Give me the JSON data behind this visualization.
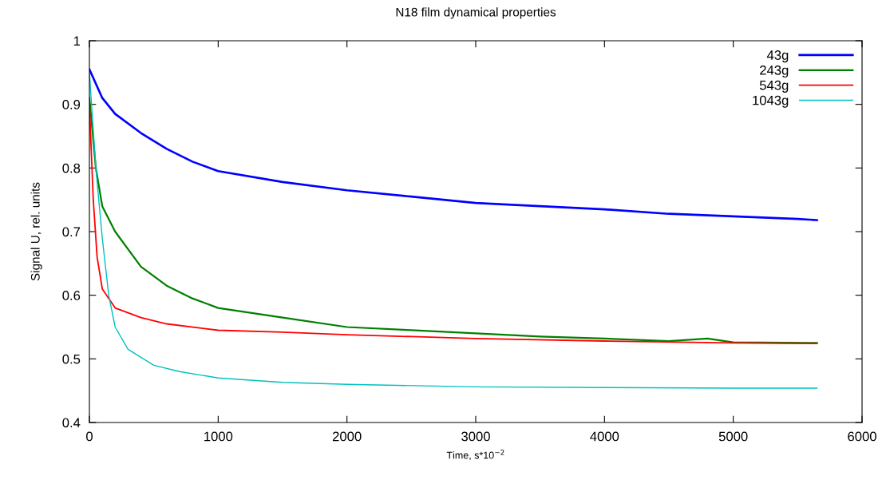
{
  "chart_data": {
    "type": "line",
    "title": "N18 film dynamical properties",
    "xlabel": "Time, s*10$^{−2}$",
    "ylabel": "Signal U, rel. units",
    "xlim": [
      0,
      6000
    ],
    "xticks": [
      0,
      1000,
      2000,
      3000,
      4000,
      5000,
      6000
    ],
    "ylim": [
      0.4,
      1
    ],
    "yticks": [
      0.4,
      0.5,
      0.6,
      0.7,
      0.8,
      0.9,
      1
    ],
    "legend": "top right",
    "grid": false,
    "marker": "none",
    "line_style": "solid",
    "series": [
      {
        "name": "43g",
        "color": "#0000ff",
        "x": [
          0,
          100,
          200,
          400,
          600,
          800,
          1000,
          1500,
          2000,
          2500,
          3000,
          3500,
          4000,
          4500,
          5000,
          5500,
          5650
        ],
        "values": [
          0.955,
          0.91,
          0.885,
          0.855,
          0.83,
          0.81,
          0.795,
          0.778,
          0.765,
          0.755,
          0.745,
          0.74,
          0.735,
          0.728,
          0.724,
          0.72,
          0.718
        ]
      },
      {
        "name": "243g",
        "color": "#008000",
        "x": [
          0,
          50,
          100,
          200,
          400,
          600,
          800,
          1000,
          1500,
          2000,
          2500,
          3000,
          3500,
          4000,
          4500,
          4800,
          5000,
          5650
        ],
        "values": [
          0.91,
          0.8,
          0.74,
          0.7,
          0.645,
          0.615,
          0.595,
          0.58,
          0.565,
          0.55,
          0.545,
          0.54,
          0.535,
          0.532,
          0.528,
          0.532,
          0.526,
          0.525
        ]
      },
      {
        "name": "543g",
        "color": "#ff0000",
        "x": [
          0,
          30,
          60,
          100,
          200,
          400,
          600,
          1000,
          1500,
          2000,
          2500,
          3000,
          4000,
          5000,
          5650
        ],
        "values": [
          0.9,
          0.75,
          0.66,
          0.61,
          0.58,
          0.565,
          0.555,
          0.545,
          0.542,
          0.538,
          0.535,
          0.532,
          0.528,
          0.525,
          0.524
        ]
      },
      {
        "name": "1043g",
        "color": "#00c0c0",
        "x": [
          0,
          50,
          100,
          150,
          200,
          300,
          500,
          700,
          1000,
          1500,
          2000,
          3000,
          4000,
          5000,
          5650
        ],
        "values": [
          0.95,
          0.8,
          0.69,
          0.6,
          0.55,
          0.515,
          0.49,
          0.48,
          0.47,
          0.463,
          0.46,
          0.456,
          0.455,
          0.454,
          0.454
        ]
      }
    ]
  }
}
